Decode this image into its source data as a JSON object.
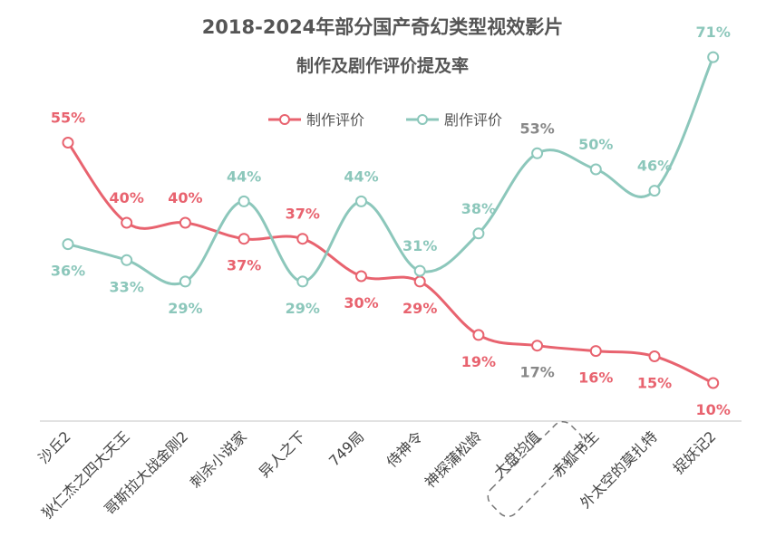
{
  "title": "2018-2024年部分国产奇幻类型视效影片",
  "subtitle": "制作及剧作评价提及率",
  "colors": {
    "production": "#e8636f",
    "script": "#8cc7bb",
    "avg": "#888888",
    "title": "#555555"
  },
  "chart_data": {
    "type": "line",
    "title": "2018-2024年部分国产奇幻类型视效影片",
    "subtitle": "制作及剧作评价提及率",
    "xlabel": "",
    "ylabel": "",
    "ylim": [
      0,
      80
    ],
    "grid": false,
    "legend": "top-center",
    "categories": [
      "沙丘2",
      "狄仁杰之四大天王",
      "哥斯拉大战金刚2",
      "刺杀小说家",
      "异人之下",
      "749局",
      "侍神令",
      "神探蒲松龄",
      "大盘均值",
      "赤狐书生",
      "外太空的莫扎特",
      "捉妖记2"
    ],
    "series": [
      {
        "name": "制作评价",
        "values": [
          55,
          40,
          40,
          37,
          37,
          30,
          29,
          19,
          17,
          16,
          15,
          10
        ],
        "labels": [
          "55%",
          "40%",
          "40%",
          "37%",
          "37%",
          "30%",
          "29%",
          "19%",
          "17%",
          "16%",
          "15%",
          "10%"
        ]
      },
      {
        "name": "剧作评价",
        "values": [
          36,
          33,
          29,
          44,
          29,
          44,
          31,
          38,
          53,
          50,
          46,
          71
        ],
        "labels": [
          "36%",
          "33%",
          "29%",
          "44%",
          "29%",
          "44%",
          "31%",
          "38%",
          "53%",
          "50%",
          "46%",
          "71%"
        ]
      }
    ],
    "highlight_category": "大盘均值"
  }
}
